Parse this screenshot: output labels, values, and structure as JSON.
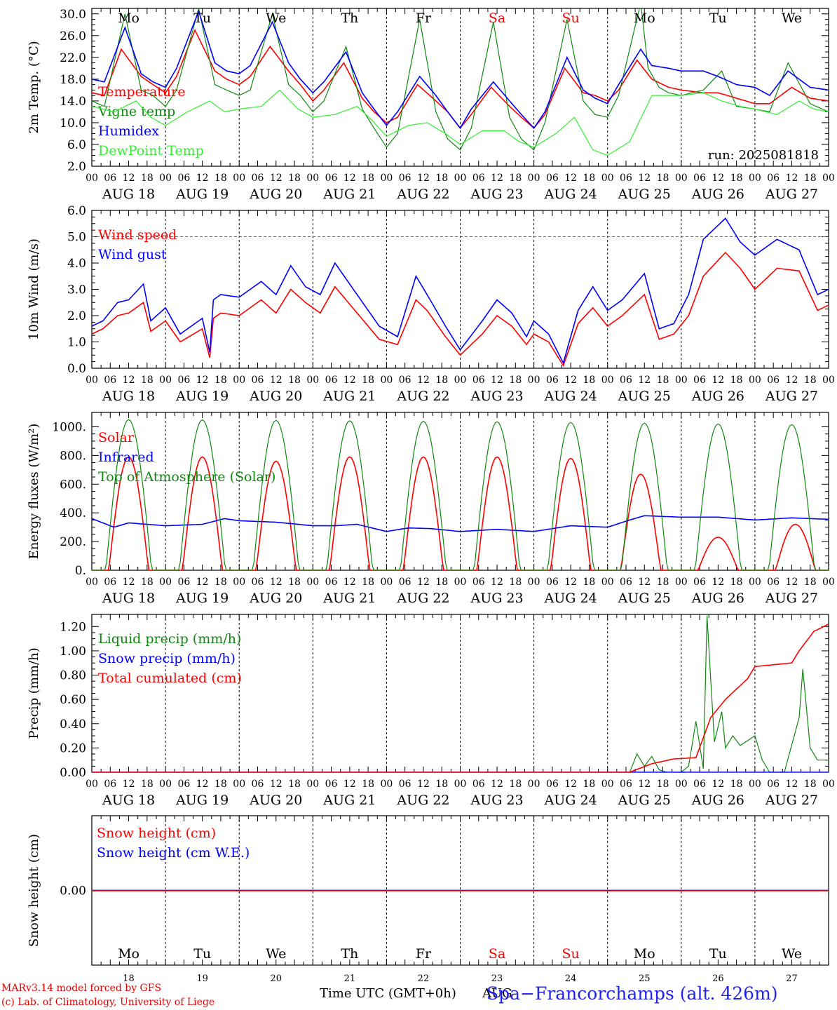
{
  "footer": {
    "line1": "MARv3.14 model forced by GFS",
    "line2": "(c) Lab. of Climatology, University of Liege",
    "xlabel": "Time UTC (GMT+0h)",
    "aug_overlap": "AUG",
    "station": "Spa−Francorchamps (alt. 426m)"
  },
  "run_label": "run: 2025081818",
  "hour_labels": [
    "00",
    "06",
    "12",
    "18"
  ],
  "final_hour": "00",
  "dates": [
    "AUG 18",
    "AUG 19",
    "AUG 20",
    "AUG 21",
    "AUG 22",
    "AUG 23",
    "AUG 24",
    "AUG 25",
    "AUG 26",
    "AUG 27"
  ],
  "day_numbers": [
    "18",
    "19",
    "20",
    "21",
    "22",
    "23",
    "24",
    "25",
    "26",
    "27"
  ],
  "weekdays": [
    "Mo",
    "Tu",
    "We",
    "Th",
    "Fr",
    "Sa",
    "Su",
    "Mo",
    "Tu",
    "We"
  ],
  "weekend_flags": [
    false,
    false,
    false,
    false,
    false,
    true,
    true,
    false,
    false,
    false
  ],
  "colors": {
    "red": "#ff0000",
    "green": "#118811",
    "blue": "#0000ff",
    "lightgreen": "#33ee33",
    "axis": "#000000",
    "weekend": "#ff0000"
  },
  "chart_data": [
    {
      "type": "line",
      "ylabel": "2m Temp. (°C)",
      "ylim": [
        2.0,
        31.0
      ],
      "yticks": [
        2,
        6,
        10,
        14,
        18,
        22,
        26,
        30
      ],
      "ytick_labels": [
        "2.0",
        "6.0",
        "10.0",
        "14.0",
        "18.0",
        "22.0",
        "26.0",
        "30.0"
      ],
      "x_days": [
        0,
        10
      ],
      "series": [
        {
          "name": "Temperature",
          "color": "red",
          "x": [
            0,
            0.17,
            0.4,
            0.67,
            0.83,
            1,
            1.15,
            1.4,
            1.67,
            1.83,
            2,
            2.15,
            2.42,
            2.67,
            2.83,
            3,
            3.15,
            3.42,
            3.67,
            3.83,
            4,
            4.15,
            4.42,
            4.67,
            4.83,
            5,
            5.15,
            5.42,
            5.67,
            5.83,
            6,
            6.15,
            6.42,
            6.67,
            6.83,
            7,
            7.15,
            7.4,
            7.6,
            7.83,
            8,
            8.3,
            8.5,
            8.75,
            9,
            9.2,
            9.5,
            9.75,
            10
          ],
          "y": [
            15.5,
            15.0,
            23.5,
            18.5,
            17.0,
            15.5,
            18.5,
            27.0,
            19.5,
            18.0,
            17.0,
            18.5,
            24.0,
            19.5,
            17.0,
            14.0,
            16.0,
            21.0,
            14.5,
            12.0,
            10.0,
            11.0,
            17.0,
            14.0,
            12.0,
            9.0,
            11.5,
            16.5,
            13.0,
            11.0,
            9.0,
            11.5,
            20.0,
            15.5,
            15.0,
            14.0,
            16.0,
            21.5,
            18.0,
            16.5,
            16.0,
            15.5,
            15.5,
            14.5,
            13.5,
            13.5,
            16.5,
            14.5,
            14.0
          ]
        },
        {
          "name": "Vigne temp",
          "color": "green",
          "x": [
            0,
            0.17,
            0.45,
            0.67,
            0.83,
            1,
            1.15,
            1.45,
            1.67,
            1.83,
            2,
            2.15,
            2.45,
            2.67,
            2.83,
            3,
            3.15,
            3.45,
            3.67,
            3.83,
            4,
            4.15,
            4.45,
            4.67,
            4.83,
            5,
            5.15,
            5.45,
            5.67,
            5.83,
            6,
            6.15,
            6.45,
            6.67,
            6.83,
            7,
            7.15,
            7.45,
            7.55,
            7.7,
            7.83,
            8,
            8.3,
            8.55,
            8.75,
            9,
            9.2,
            9.45,
            9.75,
            10
          ],
          "y": [
            14.0,
            13.0,
            30.0,
            16.0,
            15.0,
            13.0,
            16.0,
            31.0,
            17.0,
            16.0,
            15.0,
            16.0,
            30.0,
            17.0,
            15.0,
            12.0,
            14.0,
            24.0,
            12.5,
            9.0,
            5.5,
            8.0,
            29.0,
            12.0,
            7.0,
            5.0,
            9.0,
            28.5,
            11.0,
            7.0,
            5.0,
            10.0,
            29.0,
            14.0,
            11.5,
            11.0,
            15.0,
            32.0,
            20.0,
            16.5,
            15.5,
            15.0,
            16.0,
            19.5,
            13.0,
            12.5,
            12.0,
            21.0,
            13.5,
            12.0
          ]
        },
        {
          "name": "Humidex",
          "color": "blue",
          "x": [
            0,
            0.17,
            0.45,
            0.67,
            0.83,
            1,
            1.15,
            1.45,
            1.67,
            1.83,
            2,
            2.15,
            2.45,
            2.67,
            2.83,
            3,
            3.15,
            3.45,
            3.67,
            3.83,
            4,
            4.15,
            4.45,
            4.67,
            4.83,
            5,
            5.15,
            5.45,
            5.67,
            5.83,
            6,
            6.15,
            6.45,
            6.67,
            6.83,
            7,
            7.15,
            7.45,
            7.6,
            7.83,
            8,
            8.3,
            8.5,
            8.75,
            9,
            9.2,
            9.45,
            9.75,
            10
          ],
          "y": [
            18.0,
            17.5,
            27.5,
            19.0,
            17.5,
            16.5,
            20.0,
            30.5,
            21.0,
            19.5,
            19.0,
            20.5,
            28.5,
            21.0,
            18.0,
            15.5,
            17.5,
            23.0,
            15.5,
            12.5,
            9.5,
            12.0,
            18.5,
            15.0,
            12.0,
            9.0,
            12.5,
            17.5,
            14.0,
            11.5,
            9.0,
            12.0,
            22.0,
            16.0,
            14.5,
            13.5,
            17.0,
            23.5,
            20.5,
            20.0,
            19.5,
            19.5,
            18.5,
            17.0,
            16.5,
            15.0,
            19.5,
            16.5,
            16.0
          ]
        },
        {
          "name": "DewPoint Temp",
          "color": "lightgreen",
          "x": [
            0,
            0.3,
            0.6,
            0.8,
            1,
            1.3,
            1.6,
            1.8,
            2,
            2.3,
            2.55,
            2.8,
            3,
            3.3,
            3.6,
            3.8,
            4,
            4.3,
            4.55,
            4.8,
            5,
            5.3,
            5.6,
            5.8,
            6,
            6.3,
            6.55,
            6.8,
            7,
            7.3,
            7.6,
            7.8,
            8,
            8.3,
            8.55,
            8.8,
            9,
            9.3,
            9.6,
            9.8,
            10
          ],
          "y": [
            13.0,
            12.0,
            14.0,
            11.0,
            9.5,
            12.0,
            14.0,
            12.0,
            12.5,
            13.0,
            16.0,
            12.5,
            11.0,
            11.5,
            13.0,
            10.5,
            7.5,
            9.5,
            10.0,
            8.0,
            6.0,
            8.5,
            8.5,
            6.5,
            5.5,
            8.0,
            11.0,
            5.0,
            4.0,
            6.5,
            15.0,
            15.0,
            15.0,
            15.5,
            14.0,
            13.0,
            12.5,
            11.5,
            14.0,
            12.5,
            12.0
          ]
        }
      ]
    },
    {
      "type": "line",
      "ylabel": "10m Wind (m/s)",
      "ylim": [
        0.0,
        6.0
      ],
      "yticks": [
        0,
        1,
        2,
        3,
        4,
        5,
        6
      ],
      "ytick_labels": [
        "0.0",
        "1.0",
        "2.0",
        "3.0",
        "4.0",
        "5.0",
        "6.0"
      ],
      "ref_line": 5.0,
      "series": [
        {
          "name": "Wind speed",
          "color": "red",
          "x": [
            0,
            0.15,
            0.35,
            0.5,
            0.7,
            0.8,
            1,
            1.2,
            1.5,
            1.6,
            1.65,
            1.75,
            2,
            2.3,
            2.5,
            2.7,
            2.9,
            3.1,
            3.3,
            3.6,
            3.9,
            4.15,
            4.4,
            4.55,
            4.8,
            5,
            5.3,
            5.5,
            5.7,
            5.9,
            6,
            6.2,
            6.4,
            6.6,
            6.8,
            7,
            7.2,
            7.5,
            7.7,
            7.9,
            8.1,
            8.3,
            8.6,
            8.8,
            9,
            9.3,
            9.6,
            9.85,
            10
          ],
          "y": [
            1.3,
            1.5,
            2.0,
            2.1,
            2.5,
            1.4,
            1.8,
            1.0,
            1.5,
            0.4,
            1.9,
            2.1,
            2.0,
            2.6,
            2.1,
            3.0,
            2.5,
            2.1,
            3.1,
            2.1,
            1.1,
            0.9,
            2.6,
            2.2,
            1.2,
            0.5,
            1.3,
            2.0,
            1.6,
            0.9,
            1.3,
            1.0,
            0.1,
            1.7,
            2.3,
            1.6,
            2.0,
            2.8,
            1.1,
            1.3,
            2.0,
            3.5,
            4.4,
            3.8,
            3.0,
            3.8,
            3.7,
            2.2,
            2.4
          ]
        },
        {
          "name": "Wind gust",
          "color": "blue",
          "x": [
            0,
            0.15,
            0.35,
            0.5,
            0.7,
            0.8,
            1,
            1.2,
            1.5,
            1.6,
            1.65,
            1.75,
            2,
            2.3,
            2.5,
            2.7,
            2.9,
            3.1,
            3.3,
            3.6,
            3.9,
            4.15,
            4.4,
            4.55,
            4.8,
            5,
            5.3,
            5.5,
            5.7,
            5.9,
            6,
            6.2,
            6.4,
            6.6,
            6.8,
            7,
            7.2,
            7.5,
            7.7,
            7.9,
            8.1,
            8.3,
            8.6,
            8.8,
            9,
            9.3,
            9.6,
            9.85,
            10
          ],
          "y": [
            1.6,
            1.8,
            2.5,
            2.6,
            3.2,
            1.8,
            2.3,
            1.3,
            1.9,
            0.6,
            2.6,
            2.8,
            2.7,
            3.3,
            2.8,
            3.9,
            3.1,
            2.8,
            4.0,
            2.8,
            1.6,
            1.2,
            3.5,
            2.8,
            1.6,
            0.7,
            1.8,
            2.6,
            2.1,
            1.2,
            1.8,
            1.3,
            0.2,
            2.2,
            3.1,
            2.2,
            2.6,
            3.6,
            1.5,
            1.7,
            2.8,
            4.9,
            5.7,
            4.8,
            4.3,
            4.9,
            4.5,
            2.8,
            3.0
          ]
        }
      ]
    },
    {
      "type": "line",
      "ylabel": "Energy fluxes (W/m²)",
      "ylim": [
        0,
        1100
      ],
      "yticks": [
        0,
        200,
        400,
        600,
        800,
        1000
      ],
      "ytick_labels": [
        "0.",
        "200.",
        "400.",
        "600.",
        "800.",
        "1000."
      ],
      "series": [
        {
          "name": "Solar",
          "color": "red",
          "peaks": [
            790,
            790,
            760,
            790,
            790,
            790,
            780,
            670,
            230,
            320
          ],
          "peak_x": [
            0.5,
            0.5,
            0.5,
            0.5,
            0.5,
            0.5,
            0.5,
            0.45,
            0.5,
            0.55
          ]
        },
        {
          "name": "Infrared",
          "color": "blue",
          "x": [
            0,
            0.3,
            0.5,
            1,
            1.5,
            1.8,
            2,
            2.5,
            3,
            3.3,
            3.6,
            4,
            4.3,
            4.6,
            5,
            5.5,
            6,
            6.5,
            7,
            7.3,
            7.5,
            8,
            8.5,
            9,
            9.5,
            10
          ],
          "y": [
            360,
            300,
            330,
            310,
            320,
            360,
            345,
            335,
            310,
            310,
            320,
            270,
            295,
            290,
            270,
            285,
            270,
            310,
            300,
            350,
            380,
            370,
            370,
            350,
            365,
            355
          ]
        },
        {
          "name": "Top of Atmosphere (Solar)",
          "color": "green",
          "peaks": [
            1050,
            1048,
            1045,
            1042,
            1038,
            1035,
            1030,
            1025,
            1020,
            1015
          ]
        }
      ]
    },
    {
      "type": "line",
      "ylabel": "Precip (mm/h)",
      "ylim": [
        0.0,
        1.3
      ],
      "yticks": [
        0,
        0.2,
        0.4,
        0.6,
        0.8,
        1.0,
        1.2
      ],
      "ytick_labels": [
        "0.00",
        "0.20",
        "0.40",
        "0.60",
        "0.80",
        "1.00",
        "1.20"
      ],
      "series": [
        {
          "name": "Liquid precip (mm/h)",
          "color": "green",
          "x": [
            7.0,
            7.3,
            7.4,
            7.5,
            7.6,
            7.7,
            7.8,
            8.0,
            8.1,
            8.2,
            8.3,
            8.35,
            8.45,
            8.55,
            8.6,
            8.7,
            8.8,
            9.0,
            9.1,
            9.2,
            9.4,
            9.6,
            9.65,
            9.75,
            9.85,
            10
          ],
          "y": [
            0.0,
            0.0,
            0.15,
            0.05,
            0.13,
            0.02,
            0.0,
            0.0,
            0.05,
            0.42,
            0.03,
            1.29,
            0.25,
            0.5,
            0.2,
            0.3,
            0.22,
            0.3,
            0.1,
            0.0,
            0.0,
            0.45,
            0.85,
            0.2,
            0.1,
            0.1
          ]
        },
        {
          "name": "Snow precip (mm/h)",
          "color": "blue",
          "x": [
            0,
            10
          ],
          "y": [
            0,
            0
          ]
        },
        {
          "name": "Total cumulated (cm)",
          "color": "red",
          "x": [
            0,
            7.3,
            7.6,
            7.9,
            8.2,
            8.4,
            8.6,
            8.9,
            9.0,
            9.5,
            9.6,
            9.8,
            10
          ],
          "y": [
            0,
            0,
            0.07,
            0.11,
            0.12,
            0.45,
            0.6,
            0.77,
            0.87,
            0.9,
            1.0,
            1.16,
            1.22
          ]
        }
      ]
    },
    {
      "type": "line",
      "ylabel": "Snow height (cm)",
      "ylim": [
        -1,
        1
      ],
      "yticks": [
        0
      ],
      "ytick_labels": [
        "0.00"
      ],
      "series": [
        {
          "name": "Snow height (cm)",
          "color": "red",
          "x": [
            0,
            10
          ],
          "y": [
            0,
            0
          ]
        },
        {
          "name": "Snow height (cm W.E.)",
          "color": "blue",
          "x": [
            0,
            10
          ],
          "y": [
            0,
            0
          ]
        }
      ]
    }
  ]
}
